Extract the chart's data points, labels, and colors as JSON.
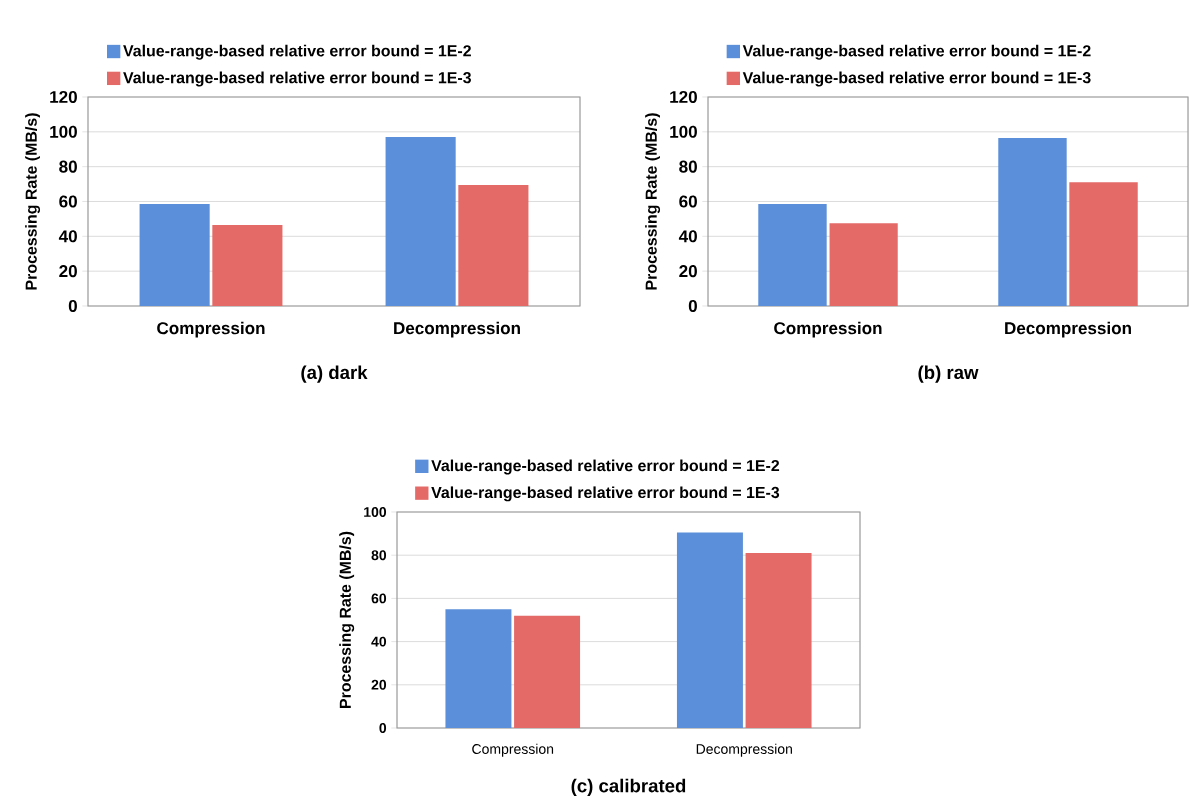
{
  "chart_data": [
    {
      "type": "bar",
      "title": "(a) dark",
      "ylabel": "Processing Rate (MB/s)",
      "categories": [
        "Compression",
        "Decompression"
      ],
      "series": [
        {
          "name": "Value-range-based relative error bound = 1E-2",
          "color": "#5b8fd9",
          "values": [
            58.5,
            97
          ]
        },
        {
          "name": "Value-range-based relative error bound = 1E-3",
          "color": "#e46a68",
          "values": [
            46.5,
            69.5
          ]
        }
      ],
      "ylim": [
        0,
        120
      ],
      "yticks": [
        0,
        20,
        40,
        60,
        80,
        100,
        120
      ],
      "grid": "y",
      "legend": "top"
    },
    {
      "type": "bar",
      "title": "(b) raw",
      "ylabel": "Processing Rate (MB/s)",
      "categories": [
        "Compression",
        "Decompression"
      ],
      "series": [
        {
          "name": "Value-range-based relative error bound = 1E-2",
          "color": "#5b8fd9",
          "values": [
            58.5,
            96.5
          ]
        },
        {
          "name": "Value-range-based relative error bound = 1E-3",
          "color": "#e46a68",
          "values": [
            47.5,
            71
          ]
        }
      ],
      "ylim": [
        0,
        120
      ],
      "yticks": [
        0,
        20,
        40,
        60,
        80,
        100,
        120
      ],
      "grid": "y",
      "legend": "top"
    },
    {
      "type": "bar",
      "title": "(c) calibrated",
      "ylabel": "Processing Rate (MB/s)",
      "categories": [
        "Compression",
        "Decompression"
      ],
      "series": [
        {
          "name": "Value-range-based relative error bound = 1E-2",
          "color": "#5b8fd9",
          "values": [
            55,
            90.5
          ]
        },
        {
          "name": "Value-range-based relative error bound = 1E-3",
          "color": "#e46a68",
          "values": [
            52,
            81
          ]
        }
      ],
      "ylim": [
        0,
        100
      ],
      "yticks": [
        0,
        20,
        40,
        60,
        80,
        100
      ],
      "grid": "y",
      "legend": "top"
    }
  ]
}
